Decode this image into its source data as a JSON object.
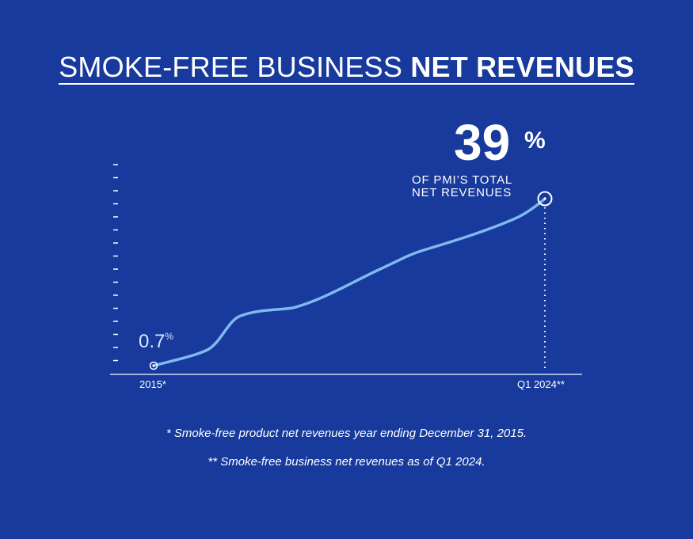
{
  "title": {
    "light": "SMOKE-FREE BUSINESS",
    "bold": "NET REVENUES"
  },
  "colors": {
    "background": "#173a9c",
    "line": "#7eb9f0",
    "text": "#ffffff"
  },
  "chart_data": {
    "type": "line",
    "title": "SMOKE-FREE BUSINESS NET REVENUES",
    "x": [
      "2015*",
      "Q1 2024**"
    ],
    "series": [
      {
        "values": [
          0.7,
          39
        ],
        "unit": "%"
      }
    ],
    "start_label": {
      "value": "0.7",
      "unit": "%"
    },
    "end_label": {
      "value": "39",
      "unit": "%",
      "caption_line1": "OF PMI’S TOTAL",
      "caption_line2": "NET REVENUES"
    },
    "y_axis": "dashed tick marks, no values",
    "grid": false
  },
  "footnotes": [
    "* Smoke-free product net revenues year ending December 31, 2015.",
    "** Smoke-free business net revenues as of Q1 2024."
  ]
}
